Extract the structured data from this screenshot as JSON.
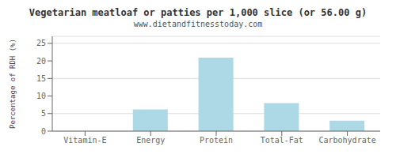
{
  "chart_data": {
    "type": "bar",
    "title": "Vegetarian meatloaf or patties per 1,000 slice (or 56.00 g)",
    "subtitle": "www.dietandfitnesstoday.com",
    "categories": [
      "Vitamin-E",
      "Energy",
      "Protein",
      "Total-Fat",
      "Carbohydrate"
    ],
    "values": [
      0.0,
      6.2,
      20.9,
      8.0,
      3.0
    ],
    "color": "#add8e6",
    "ylabel": "Percentage of RDH (%)",
    "ylim": [
      0,
      27
    ],
    "yticks": [
      0,
      5,
      10,
      15,
      20,
      25
    ],
    "grid": true
  }
}
